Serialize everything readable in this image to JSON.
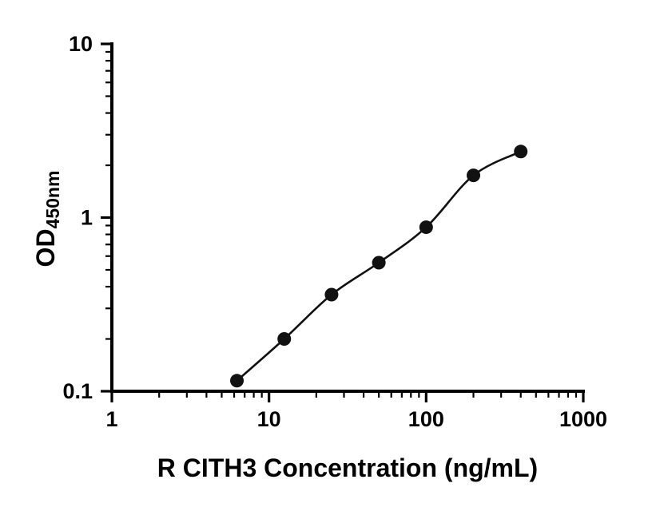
{
  "chart_data": {
    "type": "scatter",
    "title": "",
    "xlabel": "R CITH3 Concentration (ng/mL)",
    "ylabel": "OD",
    "ylabel_subscript": "450nm",
    "x_scale": "log",
    "y_scale": "log",
    "xlim": [
      1,
      1000
    ],
    "ylim": [
      0.1,
      10
    ],
    "x": [
      6.25,
      12.5,
      25,
      50,
      100,
      200,
      400
    ],
    "y": [
      0.115,
      0.2,
      0.36,
      0.55,
      0.88,
      1.75,
      2.4
    ],
    "x_major_ticks": [
      1,
      10,
      100,
      1000
    ],
    "y_major_ticks": [
      0.1,
      1,
      10
    ],
    "x_tick_labels": [
      "1",
      "10",
      "100",
      "1000"
    ],
    "y_tick_labels": [
      "0.1",
      "1",
      "10"
    ],
    "grid": false,
    "legend": null,
    "curve_style": "smooth sigmoidal fit through data points",
    "colors": {
      "axis": "#000000",
      "marker": "#111111",
      "curve": "#111111",
      "background": "#ffffff"
    }
  }
}
